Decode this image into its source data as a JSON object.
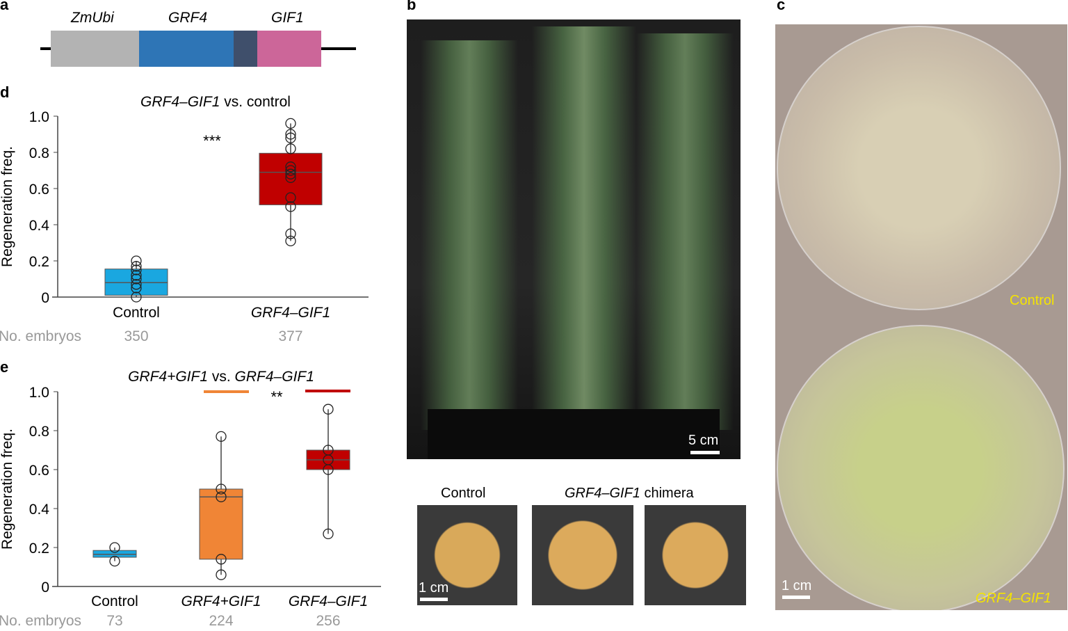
{
  "panels": {
    "a": "a",
    "b": "b",
    "c": "c",
    "d": "d",
    "e": "e"
  },
  "construct": {
    "labels": [
      "ZmUbi",
      "GRF4",
      "GIF1"
    ],
    "colors": [
      "#b3b3b3",
      "#2e75b6",
      "#3f4f6b",
      "#cc6699"
    ]
  },
  "photo_b": {
    "scale": "5 cm",
    "seeds_control": "Control",
    "seeds_chimera_gene": "GRF4–GIF1",
    "seeds_chimera_suffix": " chimera",
    "seed_scale": "1 cm"
  },
  "photo_c": {
    "control": "Control",
    "grf": "GRF4–GIF1",
    "scale": "1 cm"
  },
  "chart_data": [
    {
      "type": "box",
      "title_italic": "GRF4–GIF1",
      "title_rest": " vs. control",
      "ylabel": "Regeneration freq.",
      "ylim": [
        0,
        1
      ],
      "yticks": [
        "0",
        "0.2",
        "0.4",
        "0.6",
        "0.8",
        "1.0"
      ],
      "embryo_label": "No. embryos",
      "significance": "***",
      "groups": [
        {
          "name": "Control",
          "italic": false,
          "color": "#1aa7e0",
          "embryos": "350",
          "q1": 0.01,
          "median": 0.08,
          "q3": 0.155,
          "min": 0,
          "max": 0.2,
          "points": [
            0,
            0.05,
            0.07,
            0.1,
            0.12,
            0.15,
            0.17,
            0.2
          ]
        },
        {
          "name": "GRF4–GIF1",
          "italic": true,
          "color": "#c00000",
          "embryos": "377",
          "q1": 0.51,
          "median": 0.69,
          "q3": 0.795,
          "min": 0.31,
          "max": 0.96,
          "points": [
            0.31,
            0.35,
            0.5,
            0.55,
            0.66,
            0.68,
            0.7,
            0.72,
            0.82,
            0.88,
            0.9,
            0.96
          ]
        }
      ]
    },
    {
      "type": "box",
      "title_italic": "GRF4+GIF1",
      "title_rest": " vs. ",
      "title_italic2": "GRF4–GIF1",
      "ylabel": "Regeneration freq.",
      "ylim": [
        0,
        1
      ],
      "yticks": [
        "0",
        "0.2",
        "0.4",
        "0.6",
        "0.8",
        "1.0"
      ],
      "embryo_label": "No. embryos",
      "significance": "**",
      "groups": [
        {
          "name": "Control",
          "italic": false,
          "color": "#1aa7e0",
          "embryos": "73",
          "q1": 0.15,
          "median": 0.165,
          "q3": 0.185,
          "min": 0.13,
          "max": 0.2,
          "points": [
            0.13,
            0.2
          ]
        },
        {
          "name": "GRF4+GIF1",
          "italic": true,
          "color": "#f08536",
          "embryos": "224",
          "q1": 0.14,
          "median": 0.46,
          "q3": 0.5,
          "min": 0.06,
          "max": 0.77,
          "points": [
            0.06,
            0.14,
            0.46,
            0.5,
            0.77
          ]
        },
        {
          "name": "GRF4–GIF1",
          "italic": true,
          "color": "#c00000",
          "embryos": "256",
          "q1": 0.6,
          "median": 0.65,
          "q3": 0.7,
          "min": 0.27,
          "max": 0.91,
          "points": [
            0.27,
            0.6,
            0.65,
            0.7,
            0.91
          ]
        }
      ]
    }
  ]
}
